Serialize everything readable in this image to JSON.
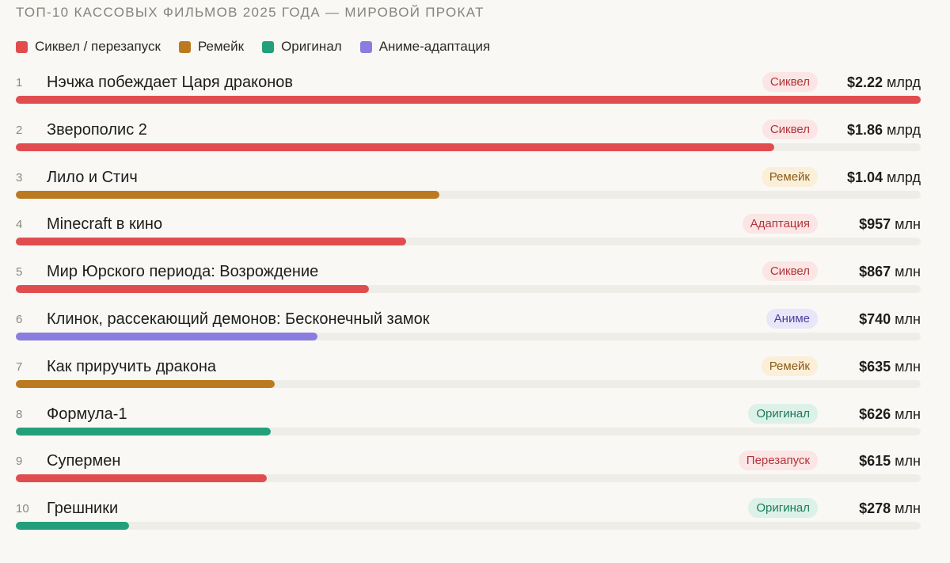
{
  "title": "ТОП-10 КАССОВЫХ ФИЛЬМОВ 2025 ГОДА — МИРОВОЙ ПРОКАТ",
  "legend": [
    {
      "label": "Сиквел / перезапуск",
      "color": "#e14d4f"
    },
    {
      "label": "Ремейк",
      "color": "#bb7a20"
    },
    {
      "label": "Оригинал",
      "color": "#23a07a"
    },
    {
      "label": "Аниме-адаптация",
      "color": "#8a7de0"
    }
  ],
  "tag_styles": {
    "sequel": {
      "bg": "#fbe6e5",
      "fg": "#b0353a"
    },
    "remake": {
      "bg": "#fbefd9",
      "fg": "#8a5a14"
    },
    "original": {
      "bg": "#dcf1e8",
      "fg": "#1d7a5b"
    },
    "anime": {
      "bg": "#e9e6fa",
      "fg": "#4b3fa0"
    }
  },
  "chart_data": {
    "type": "bar",
    "orientation": "horizontal",
    "title": "ТОП-10 КАССОВЫХ ФИЛЬМОВ 2025 ГОДА — МИРОВОЙ ПРОКАТ",
    "unit": "$ млн",
    "xlim": [
      0,
      2220
    ],
    "rows": [
      {
        "rank": "1",
        "title": "Нэчжа побеждает Царя драконов",
        "tag": "Сиквел",
        "tag_style": "sequel",
        "bar_color": "#e14d4f",
        "value": 2220,
        "value_num": "$2.22",
        "value_unit": "млрд"
      },
      {
        "rank": "2",
        "title": "Зверополис 2",
        "tag": "Сиквел",
        "tag_style": "sequel",
        "bar_color": "#e14d4f",
        "value": 1860,
        "value_num": "$1.86",
        "value_unit": "млрд"
      },
      {
        "rank": "3",
        "title": "Лило и Стич",
        "tag": "Ремейк",
        "tag_style": "remake",
        "bar_color": "#bb7a20",
        "value": 1040,
        "value_num": "$1.04",
        "value_unit": "млрд"
      },
      {
        "rank": "4",
        "title": "Minecraft в кино",
        "tag": "Адаптация",
        "tag_style": "sequel",
        "bar_color": "#e14d4f",
        "value": 957,
        "value_num": "$957",
        "value_unit": "млн"
      },
      {
        "rank": "5",
        "title": "Мир Юрского периода: Возрождение",
        "tag": "Сиквел",
        "tag_style": "sequel",
        "bar_color": "#e14d4f",
        "value": 867,
        "value_num": "$867",
        "value_unit": "млн"
      },
      {
        "rank": "6",
        "title": "Клинок, рассекающий демонов: Бесконечный замок",
        "tag": "Аниме",
        "tag_style": "anime",
        "bar_color": "#8a7de0",
        "value": 740,
        "value_num": "$740",
        "value_unit": "млн"
      },
      {
        "rank": "7",
        "title": "Как приручить дракона",
        "tag": "Ремейк",
        "tag_style": "remake",
        "bar_color": "#bb7a20",
        "value": 635,
        "value_num": "$635",
        "value_unit": "млн"
      },
      {
        "rank": "8",
        "title": "Формула-1",
        "tag": "Оригинал",
        "tag_style": "original",
        "bar_color": "#23a07a",
        "value": 626,
        "value_num": "$626",
        "value_unit": "млн"
      },
      {
        "rank": "9",
        "title": "Супермен",
        "tag": "Перезапуск",
        "tag_style": "sequel",
        "bar_color": "#e14d4f",
        "value": 615,
        "value_num": "$615",
        "value_unit": "млн"
      },
      {
        "rank": "10",
        "title": "Грешники",
        "tag": "Оригинал",
        "tag_style": "original",
        "bar_color": "#23a07a",
        "value": 278,
        "value_num": "$278",
        "value_unit": "млн"
      }
    ]
  }
}
